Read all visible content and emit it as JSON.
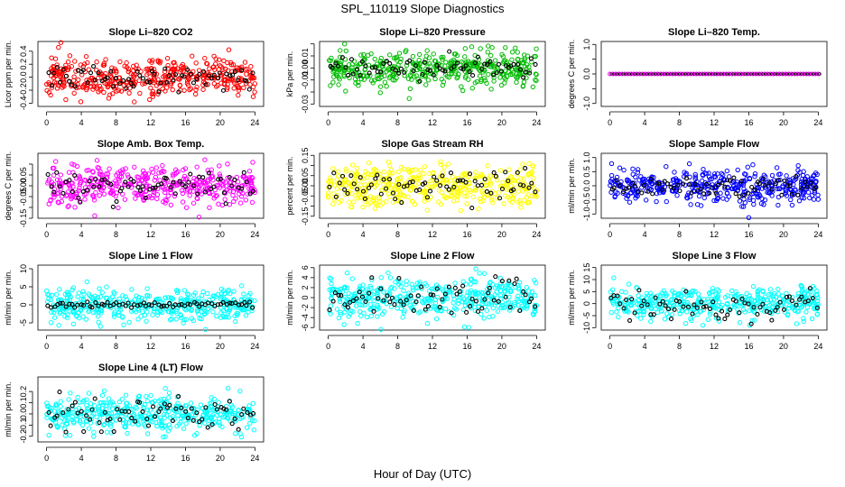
{
  "figure": {
    "title": "SPL_110119  Slope Diagnostics",
    "xlabel": "Hour of Day (UTC)"
  },
  "chart_data": [
    {
      "type": "scatter",
      "title": "Slope Li–820 CO2",
      "ylabel": "Licor ppm per min.",
      "color": "#ff0000",
      "ylim": [
        -0.45,
        0.55
      ],
      "yticks": [
        -0.4,
        -0.2,
        0,
        0.2,
        0.4
      ],
      "ytick_labels": [
        "-0.4",
        "-0.2",
        "0.0",
        "0.2",
        "0.4"
      ],
      "xlim": [
        -1,
        25
      ],
      "xticks": [
        0,
        4,
        8,
        12,
        16,
        20,
        24
      ],
      "spread": 0.15,
      "black_spread": 0.1,
      "seed": 11,
      "flat": false
    },
    {
      "type": "scatter",
      "title": "Slope Li–820 Pressure",
      "ylabel": "kPa per min.",
      "color": "#00bb00",
      "ylim": [
        -0.032,
        0.022
      ],
      "yticks": [
        -0.03,
        -0.02,
        -0.01,
        0,
        0.01,
        0.02
      ],
      "ytick_labels": [
        "-0.03",
        "",
        "-0.01",
        "0.00",
        "0.01",
        ""
      ],
      "xlim": [
        -1,
        25
      ],
      "xticks": [
        0,
        4,
        8,
        12,
        16,
        20,
        24
      ],
      "spread": 0.007,
      "black_spread": 0.004,
      "seed": 23,
      "flat": false
    },
    {
      "type": "scatter",
      "title": "Slope Li–820 Temp.",
      "ylabel": "degrees C per min.",
      "color": "#ff00ff",
      "ylim": [
        -1.1,
        1.1
      ],
      "yticks": [
        -1,
        -0.5,
        0,
        0.5,
        1
      ],
      "ytick_labels": [
        "-1.0",
        "",
        "0.0",
        "",
        "1.0"
      ],
      "xlim": [
        -1,
        25
      ],
      "xticks": [
        0,
        4,
        8,
        12,
        16,
        20,
        24
      ],
      "spread": 0,
      "black_spread": 0,
      "seed": 31,
      "flat": true
    },
    {
      "type": "scatter",
      "title": "Slope Amb. Box Temp.",
      "ylabel": "degrees C per min.",
      "color": "#ff00ff",
      "ylim": [
        -0.15,
        0.15
      ],
      "yticks": [
        -0.15,
        -0.1,
        -0.05,
        0,
        0.05,
        0.1
      ],
      "ytick_labels": [
        "-0.15",
        "",
        "-0.05",
        "0.00",
        "0.05",
        ""
      ],
      "xlim": [
        -1,
        25
      ],
      "xticks": [
        0,
        4,
        8,
        12,
        16,
        20,
        24
      ],
      "spread": 0.045,
      "black_spread": 0.03,
      "seed": 43,
      "flat": false
    },
    {
      "type": "scatter",
      "title": "Slope Gas Stream RH",
      "ylabel": "percent per min.",
      "color": "#ffff00",
      "ylim": [
        -0.16,
        0.16
      ],
      "yticks": [
        -0.15,
        -0.1,
        -0.05,
        0,
        0.05,
        0.1,
        0.15
      ],
      "ytick_labels": [
        "-0.15",
        "",
        "-0.05",
        "0.00",
        "0.05",
        "",
        "0.15"
      ],
      "xlim": [
        -1,
        25
      ],
      "xticks": [
        0,
        4,
        8,
        12,
        16,
        20,
        24
      ],
      "spread": 0.05,
      "black_spread": 0.04,
      "seed": 57,
      "flat": false
    },
    {
      "type": "scatter",
      "title": "Slope Sample Flow",
      "ylabel": "ml/min per min.",
      "color": "#0000ff",
      "ylim": [
        -1.15,
        1.15
      ],
      "yticks": [
        -1,
        -0.5,
        0,
        0.5,
        1
      ],
      "ytick_labels": [
        "-1.0",
        "-0.5",
        "0.0",
        "0.5",
        "1.0"
      ],
      "xlim": [
        -1,
        25
      ],
      "xticks": [
        0,
        4,
        8,
        12,
        16,
        20,
        24
      ],
      "spread": 0.3,
      "black_spread": 0.2,
      "seed": 61,
      "flat": false
    },
    {
      "type": "scatter",
      "title": "Slope Line 1 Flow",
      "ylabel": "ml/min per min.",
      "color": "#00ffff",
      "ylim": [
        -7,
        11
      ],
      "yticks": [
        -5,
        0,
        5,
        10
      ],
      "ytick_labels": [
        "-5",
        "0",
        "5",
        "10"
      ],
      "xlim": [
        -1,
        25
      ],
      "xticks": [
        0,
        4,
        8,
        12,
        16,
        20,
        24
      ],
      "spread": 2.2,
      "black_spread": 0.3,
      "seed": 71,
      "flat": false
    },
    {
      "type": "scatter",
      "title": "Slope Line 2 Flow",
      "ylabel": "ml/min per min.",
      "color": "#00ffff",
      "ylim": [
        -6.5,
        6.5
      ],
      "yticks": [
        -6,
        -4,
        -2,
        0,
        2,
        4,
        6
      ],
      "ytick_labels": [
        "-6",
        "-4",
        "-2",
        "0",
        "2",
        "4",
        "6"
      ],
      "xlim": [
        -1,
        25
      ],
      "xticks": [
        0,
        4,
        8,
        12,
        16,
        20,
        24
      ],
      "spread": 2,
      "black_spread": 2,
      "seed": 83,
      "flat": false
    },
    {
      "type": "scatter",
      "title": "Slope Line 3 Flow",
      "ylabel": "ml/min per min.",
      "color": "#00ffff",
      "ylim": [
        -11,
        16
      ],
      "yticks": [
        -10,
        -5,
        0,
        5,
        10,
        15
      ],
      "ytick_labels": [
        "-10",
        "-5",
        "0",
        "5",
        "10",
        "15"
      ],
      "xlim": [
        -1,
        25
      ],
      "xticks": [
        0,
        4,
        8,
        12,
        16,
        20,
        24
      ],
      "spread": 3.5,
      "black_spread": 3.5,
      "seed": 97,
      "flat": false
    },
    {
      "type": "scatter",
      "title": "Slope Line 4 (LT) Flow",
      "ylabel": "ml/min per min.",
      "color": "#00ffff",
      "ylim": [
        -0.25,
        0.33
      ],
      "yticks": [
        -0.2,
        -0.1,
        0,
        0.1,
        0.2
      ],
      "ytick_labels": [
        "-0.2",
        "-0.1",
        "0.0",
        "0.1",
        "0.2"
      ],
      "xlim": [
        -1,
        25
      ],
      "xticks": [
        0,
        4,
        8,
        12,
        16,
        20,
        24
      ],
      "spread": 0.08,
      "black_spread": 0.08,
      "seed": 101,
      "flat": false
    }
  ]
}
